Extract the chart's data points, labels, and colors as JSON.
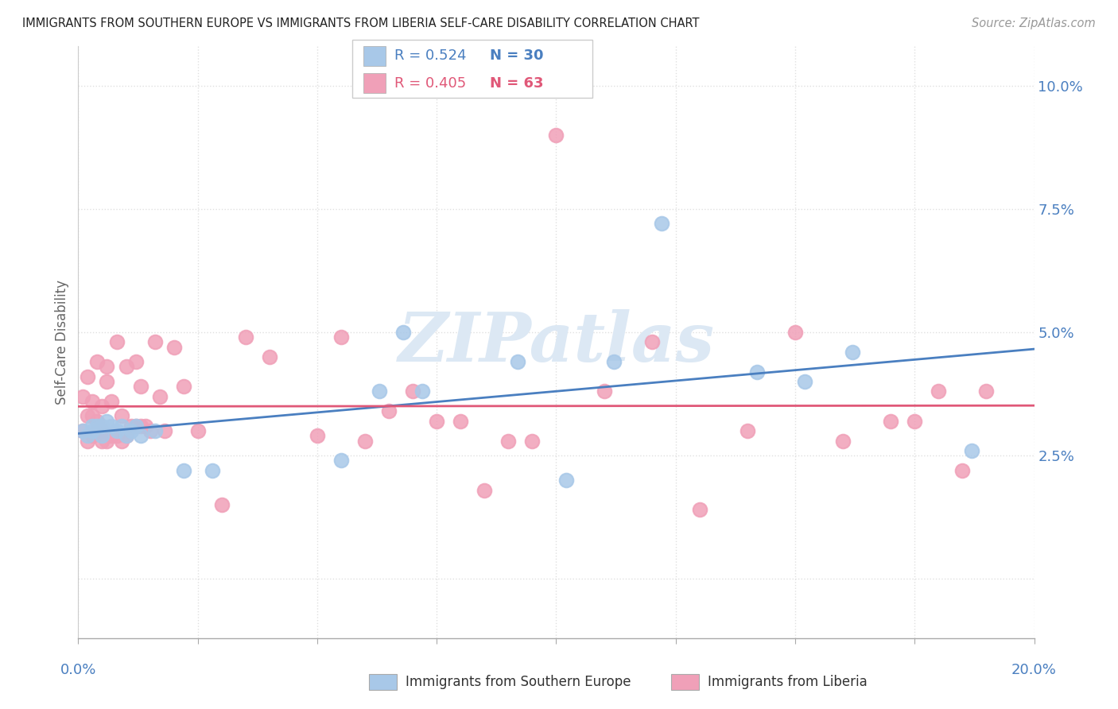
{
  "title": "IMMIGRANTS FROM SOUTHERN EUROPE VS IMMIGRANTS FROM LIBERIA SELF-CARE DISABILITY CORRELATION CHART",
  "source": "Source: ZipAtlas.com",
  "ylabel": "Self-Care Disability",
  "legend_blue_r": "R = 0.524",
  "legend_blue_n": "N = 30",
  "legend_pink_r": "R = 0.405",
  "legend_pink_n": "N = 63",
  "xlim": [
    0.0,
    0.2
  ],
  "ylim": [
    -0.012,
    0.108
  ],
  "yticks": [
    0.0,
    0.025,
    0.05,
    0.075,
    0.1
  ],
  "ytick_labels": [
    "",
    "2.5%",
    "5.0%",
    "7.5%",
    "10.0%"
  ],
  "blue_marker_color": "#a8c8e8",
  "blue_line_color": "#4a7fc0",
  "pink_marker_color": "#f0a0b8",
  "pink_line_color": "#e05878",
  "grid_color": "#e0e0e0",
  "watermark": "ZIPatlas",
  "watermark_color": "#dce8f4",
  "blue_x": [
    0.001,
    0.002,
    0.003,
    0.003,
    0.004,
    0.005,
    0.005,
    0.006,
    0.007,
    0.008,
    0.009,
    0.01,
    0.011,
    0.012,
    0.013,
    0.016,
    0.022,
    0.028,
    0.055,
    0.063,
    0.068,
    0.072,
    0.092,
    0.102,
    0.112,
    0.122,
    0.142,
    0.152,
    0.162,
    0.187
  ],
  "blue_y": [
    0.03,
    0.029,
    0.03,
    0.031,
    0.031,
    0.029,
    0.031,
    0.032,
    0.031,
    0.03,
    0.031,
    0.029,
    0.03,
    0.031,
    0.029,
    0.03,
    0.022,
    0.022,
    0.024,
    0.038,
    0.05,
    0.038,
    0.044,
    0.02,
    0.044,
    0.072,
    0.042,
    0.04,
    0.046,
    0.026
  ],
  "pink_x": [
    0.001,
    0.001,
    0.002,
    0.002,
    0.002,
    0.003,
    0.003,
    0.003,
    0.004,
    0.004,
    0.004,
    0.005,
    0.005,
    0.005,
    0.006,
    0.006,
    0.006,
    0.007,
    0.007,
    0.008,
    0.008,
    0.009,
    0.009,
    0.01,
    0.01,
    0.011,
    0.012,
    0.012,
    0.013,
    0.013,
    0.014,
    0.015,
    0.016,
    0.017,
    0.018,
    0.02,
    0.022,
    0.025,
    0.03,
    0.035,
    0.04,
    0.05,
    0.055,
    0.06,
    0.065,
    0.07,
    0.075,
    0.08,
    0.085,
    0.09,
    0.095,
    0.1,
    0.11,
    0.12,
    0.13,
    0.14,
    0.15,
    0.16,
    0.17,
    0.175,
    0.18,
    0.185,
    0.19
  ],
  "pink_y": [
    0.03,
    0.037,
    0.028,
    0.033,
    0.041,
    0.029,
    0.033,
    0.036,
    0.03,
    0.032,
    0.044,
    0.028,
    0.03,
    0.035,
    0.028,
    0.04,
    0.043,
    0.029,
    0.036,
    0.029,
    0.048,
    0.028,
    0.033,
    0.029,
    0.043,
    0.031,
    0.031,
    0.044,
    0.031,
    0.039,
    0.031,
    0.03,
    0.048,
    0.037,
    0.03,
    0.047,
    0.039,
    0.03,
    0.015,
    0.049,
    0.045,
    0.029,
    0.049,
    0.028,
    0.034,
    0.038,
    0.032,
    0.032,
    0.018,
    0.028,
    0.028,
    0.09,
    0.038,
    0.048,
    0.014,
    0.03,
    0.05,
    0.028,
    0.032,
    0.032,
    0.038,
    0.022,
    0.038
  ]
}
